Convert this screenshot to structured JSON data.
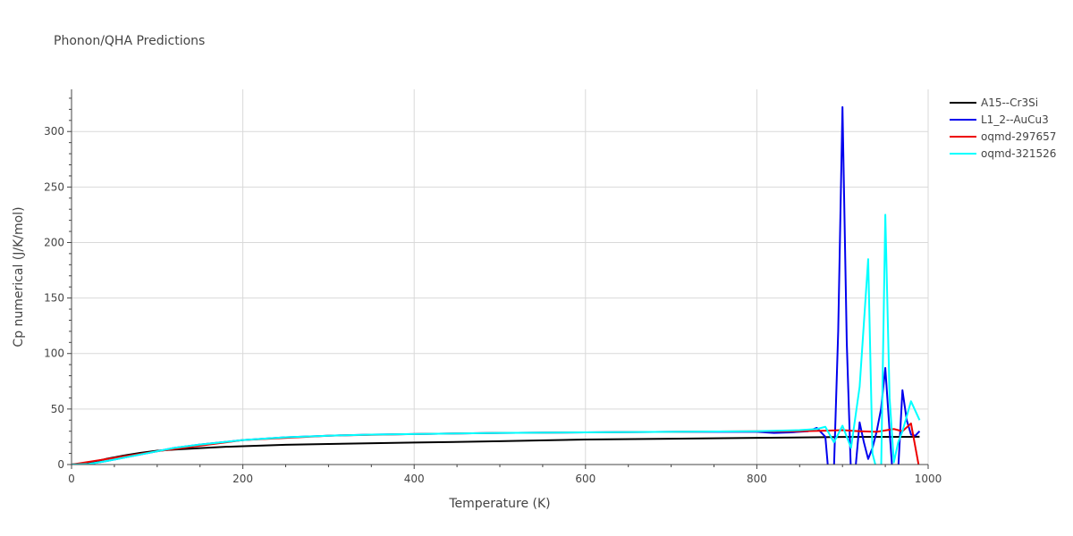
{
  "chart_data": {
    "type": "line",
    "title": "Phonon/QHA Predictions",
    "xlabel": "Temperature (K)",
    "ylabel": "Cp numerical (J/K/mol)",
    "xlim": [
      0,
      1000
    ],
    "ylim": [
      0,
      338
    ],
    "xticks": [
      0,
      200,
      400,
      600,
      800,
      1000
    ],
    "yticks": [
      0,
      50,
      100,
      150,
      200,
      250,
      300
    ],
    "grid": true,
    "legend_position": "top-right",
    "series": [
      {
        "name": "A15--Cr3Si",
        "color": "#000000",
        "x": [
          0,
          20,
          40,
          60,
          80,
          100,
          120,
          150,
          180,
          200,
          250,
          300,
          400,
          500,
          600,
          700,
          800,
          900,
          990
        ],
        "y": [
          0,
          1.5,
          5,
          8,
          10.5,
          12.5,
          13.5,
          14.8,
          16,
          16.5,
          17.8,
          18.5,
          19.8,
          21,
          22.5,
          23.2,
          24,
          24.8,
          25
        ]
      },
      {
        "name": "L1_2--AuCu3",
        "color": "#0000ee",
        "x": [
          0,
          20,
          40,
          60,
          80,
          100,
          120,
          150,
          200,
          250,
          300,
          350,
          400,
          500,
          600,
          700,
          800,
          820,
          840,
          860,
          870,
          880,
          885,
          890,
          895,
          900,
          905,
          910,
          915,
          920,
          925,
          930,
          935,
          940,
          945,
          950,
          955,
          960,
          965,
          970,
          975,
          980,
          985,
          990
        ],
        "y": [
          0,
          0.5,
          3,
          6,
          9,
          12,
          15,
          18,
          22,
          24.5,
          26,
          27,
          27.5,
          28.5,
          29,
          29.5,
          29.5,
          28.5,
          29,
          30,
          33,
          25,
          -20,
          -5,
          120,
          322,
          110,
          -10,
          -5,
          38,
          20,
          5,
          15,
          30,
          50,
          87,
          30,
          -25,
          -5,
          67,
          40,
          27,
          26,
          30
        ]
      },
      {
        "name": "oqmd-297657",
        "color": "#ee0000",
        "x": [
          0,
          100,
          200,
          300,
          400,
          500,
          600,
          700,
          800,
          850,
          880,
          900,
          920,
          940,
          960,
          970,
          980,
          990
        ],
        "y": [
          0,
          12,
          22,
          26,
          27.5,
          28.5,
          29,
          29.5,
          30,
          30,
          30.5,
          31,
          30,
          29.5,
          32,
          30,
          37,
          -5
        ]
      },
      {
        "name": "oqmd-321526",
        "color": "#00ffff",
        "x": [
          0,
          20,
          40,
          60,
          80,
          100,
          120,
          150,
          200,
          250,
          300,
          350,
          400,
          500,
          600,
          700,
          800,
          850,
          870,
          880,
          890,
          900,
          910,
          920,
          930,
          935,
          940,
          945,
          950,
          955,
          960,
          965,
          970,
          980,
          990
        ],
        "y": [
          0,
          0.5,
          3,
          6,
          9,
          12,
          15,
          18,
          22,
          24.5,
          26,
          27,
          27.5,
          28.5,
          29,
          29.5,
          30,
          31,
          32,
          34,
          20,
          35,
          15,
          70,
          185,
          10,
          -5,
          -10,
          225,
          60,
          2,
          20,
          30,
          57,
          40
        ]
      }
    ]
  }
}
